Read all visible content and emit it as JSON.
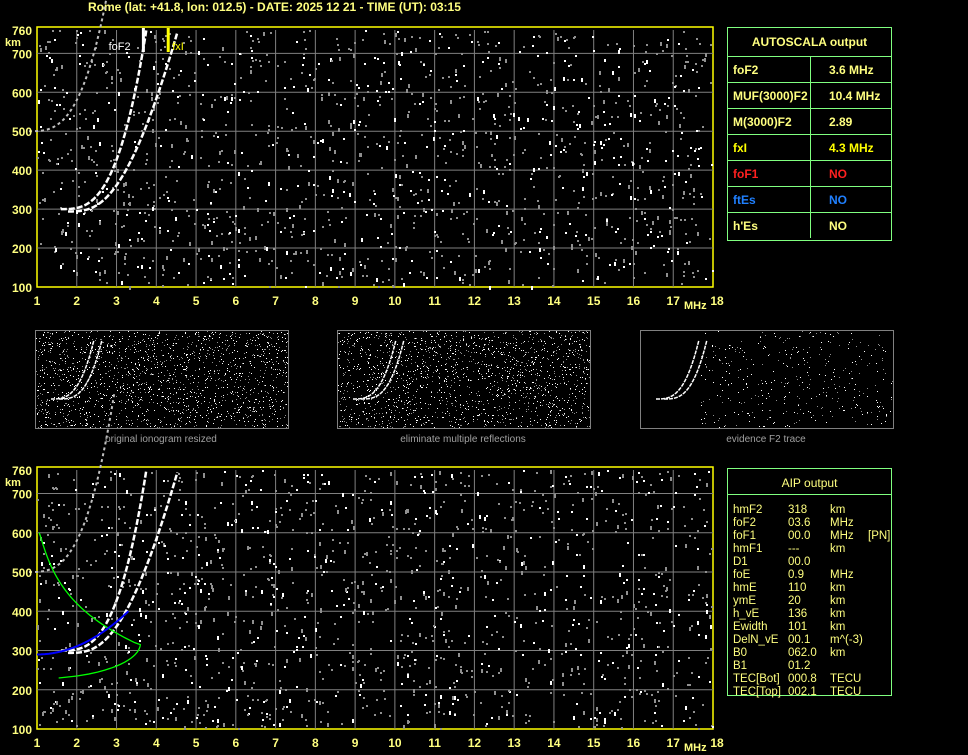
{
  "header": {
    "title": "Rome (lat: +41.8, lon: 012.5) - DATE: 2025 12 21 - TIME (UT): 03:15"
  },
  "axes": {
    "y_ticks": [
      "760",
      "700",
      "600",
      "500",
      "400",
      "300",
      "200",
      "100"
    ],
    "y_unit": "km",
    "x_ticks": [
      "1",
      "2",
      "3",
      "4",
      "5",
      "6",
      "7",
      "8",
      "9",
      "10",
      "11",
      "12",
      "13",
      "14",
      "15",
      "16",
      "17",
      "18"
    ],
    "x_unit": "MHz"
  },
  "plot_top": {
    "labels": {
      "foF2": "foF2",
      "fxI": "fxI"
    },
    "colors": {
      "frame": "#ffff00",
      "grid": "#808080",
      "trace": "#ffffff",
      "marker": "#ffff00"
    }
  },
  "plot_bottom": {
    "colors": {
      "profile": "#00ff00",
      "fit": "#0000ff"
    }
  },
  "autoscala": {
    "title": "AUTOSCALA output",
    "rows": [
      {
        "key": "foF2",
        "value": "3.6 MHz",
        "color": "#ffff80"
      },
      {
        "key": "MUF(3000)F2",
        "value": "10.4 MHz",
        "color": "#ffff80"
      },
      {
        "key": "M(3000)F2",
        "value": "2.89",
        "color": "#ffff80"
      },
      {
        "key": "fxI",
        "value": "4.3 MHz",
        "color": "#ffff00"
      },
      {
        "key": "foF1",
        "value": "NO",
        "color": "#ff2020"
      },
      {
        "key": "ftEs",
        "value": "NO",
        "color": "#2080ff"
      },
      {
        "key": "h'Es",
        "value": "NO",
        "color": "#ffff80"
      }
    ]
  },
  "thumbnails": [
    {
      "caption": "original ionogram resized"
    },
    {
      "caption": "eliminate multiple reflections"
    },
    {
      "caption": "evidence F2 trace"
    }
  ],
  "aip": {
    "title": "AIP output",
    "rows": [
      [
        "hmF2",
        "318",
        "km",
        ""
      ],
      [
        "foF2",
        "03.6",
        "MHz",
        ""
      ],
      [
        "foF1",
        "00.0",
        "MHz",
        "[PN]"
      ],
      [
        "hmF1",
        "---",
        "km",
        ""
      ],
      [
        "D1",
        "00.0",
        "",
        ""
      ],
      [
        "foE",
        "0.9",
        "MHz",
        ""
      ],
      [
        "hmE",
        "110",
        "km",
        ""
      ],
      [
        "ymE",
        "20",
        "km",
        ""
      ],
      [
        "h_vE",
        "136",
        "km",
        ""
      ],
      [
        "Ewidth",
        "101",
        "km",
        ""
      ],
      [
        "DelN_vE",
        "00.1",
        "m^(-3)",
        ""
      ],
      [
        "B0",
        "062.0",
        "km",
        ""
      ],
      [
        "B1",
        "01.2",
        "",
        ""
      ],
      [
        "TEC[Bot]",
        "000.8",
        "TECU",
        ""
      ],
      [
        "TEC[Top]",
        "002.1",
        "TECU",
        ""
      ]
    ]
  }
}
